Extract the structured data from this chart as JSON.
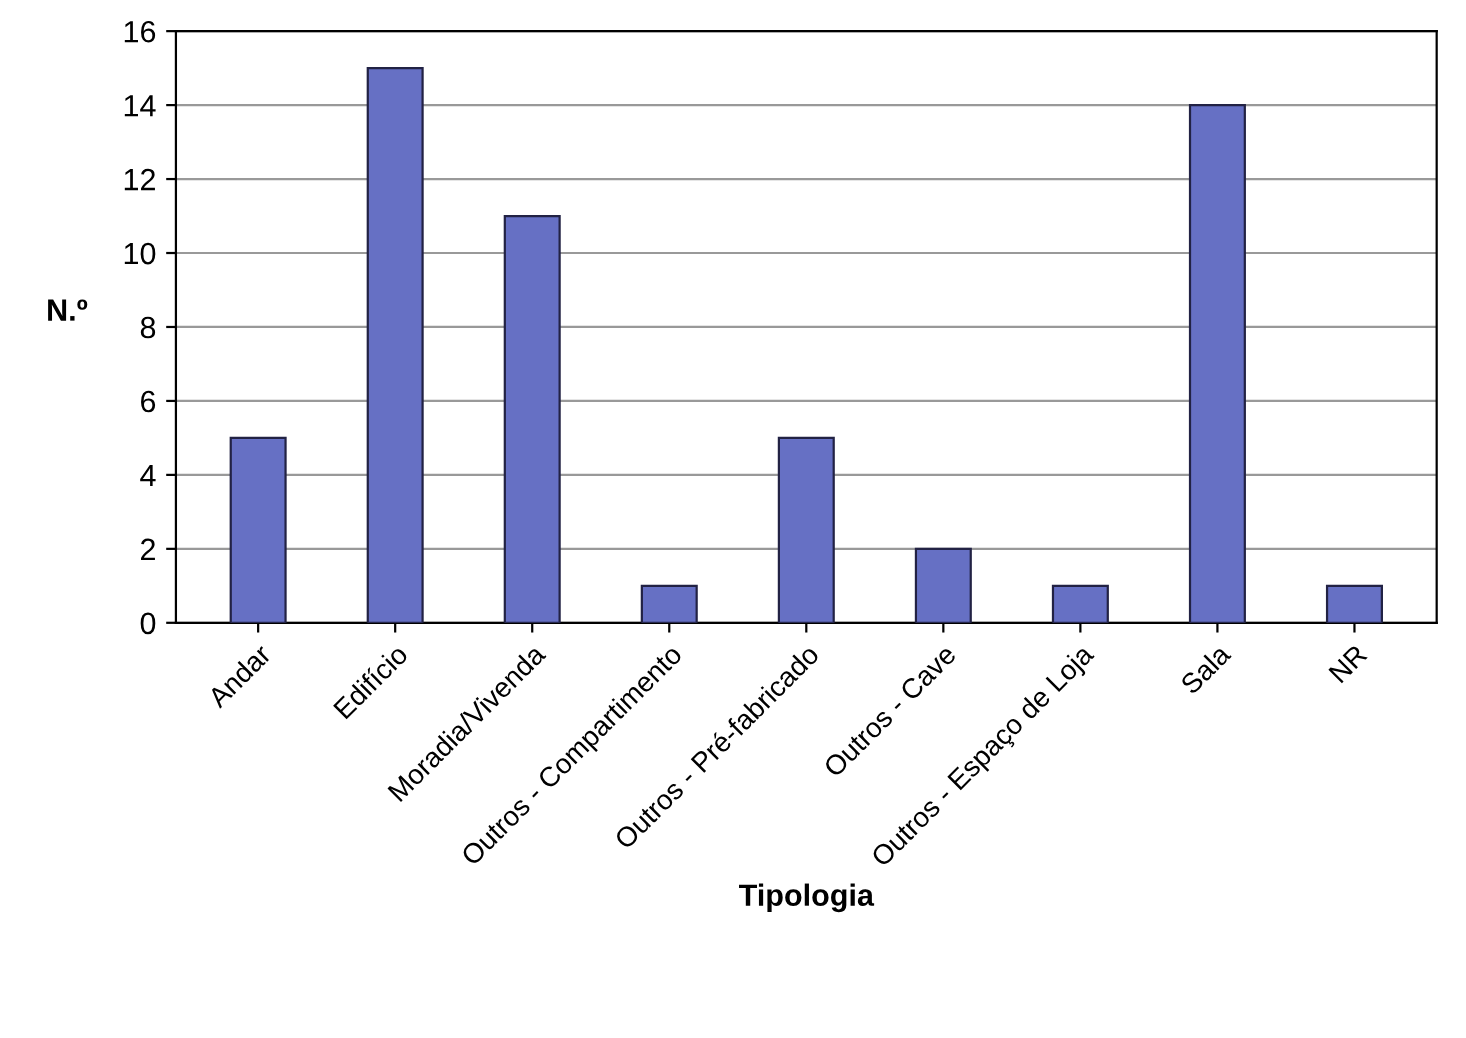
{
  "chart_data": {
    "type": "bar",
    "xlabel": "Tipologia",
    "ylabel": "N.º",
    "categories": [
      "Andar",
      "Edifício",
      "Moradia/Vivenda",
      "Outros - Compartimento",
      "Outros - Pré-fabricado",
      "Outros - Cave",
      "Outros - Espaço de Loja",
      "Sala",
      "NR"
    ],
    "values": [
      5,
      15,
      11,
      1,
      5,
      2,
      1,
      14,
      1
    ],
    "color": "#6670c4",
    "ylim": [
      0,
      16
    ],
    "yticks": [
      0,
      2,
      4,
      6,
      8,
      10,
      12,
      14,
      16
    ],
    "grid": "y",
    "legend": false
  }
}
